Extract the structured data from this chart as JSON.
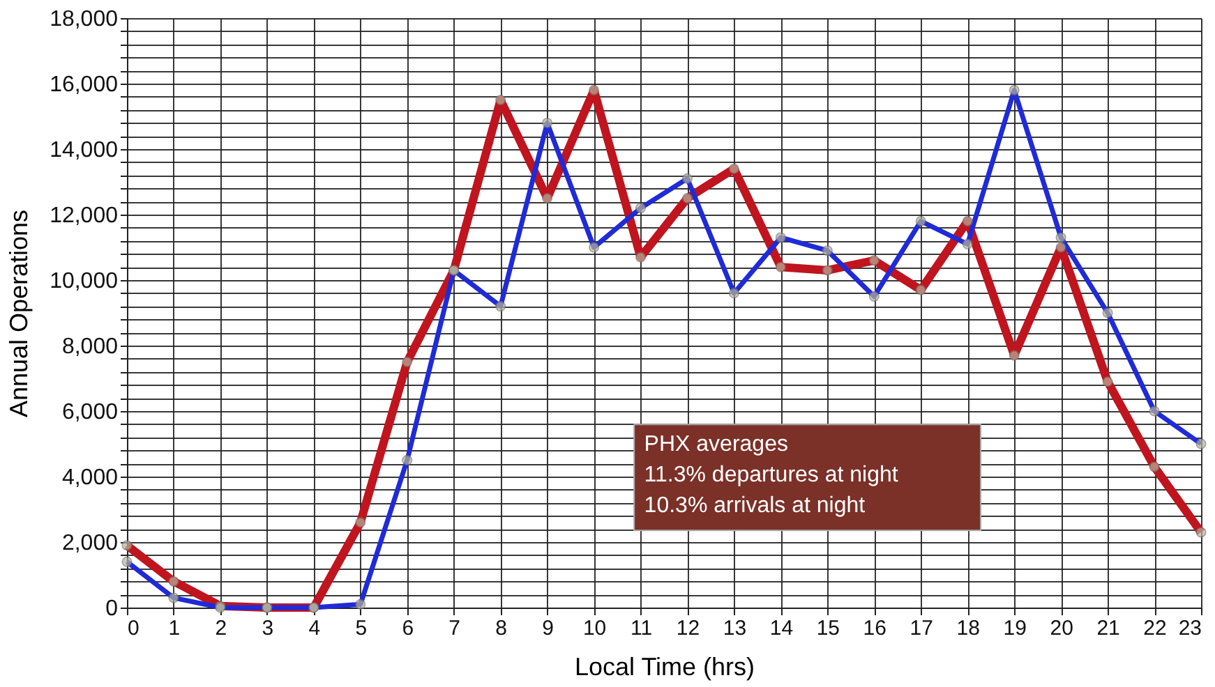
{
  "chart_data": {
    "type": "line",
    "xlabel": "Local Time (hrs)",
    "ylabel": "Annual Operations",
    "x": [
      0,
      1,
      2,
      3,
      4,
      5,
      6,
      7,
      8,
      9,
      10,
      11,
      12,
      13,
      14,
      15,
      16,
      17,
      18,
      19,
      20,
      21,
      22,
      23
    ],
    "xlim": [
      0,
      23
    ],
    "xticks": [
      0,
      1,
      2,
      3,
      4,
      5,
      6,
      7,
      8,
      9,
      10,
      11,
      12,
      13,
      14,
      15,
      16,
      17,
      18,
      19,
      20,
      21,
      22,
      23
    ],
    "ylim": [
      0,
      18000
    ],
    "yticks": [
      0,
      {
        "value": 400,
        "label": null
      },
      {
        "value": 800,
        "label": null
      },
      {
        "value": 1200,
        "label": null
      },
      {
        "value": 1600,
        "label": null
      },
      {
        "value": 2000,
        "label": "2,000"
      },
      {
        "value": 2400,
        "label": null
      },
      {
        "value": 2800,
        "label": null
      },
      {
        "value": 3200,
        "label": null
      },
      {
        "value": 3600,
        "label": null
      },
      {
        "value": 4000,
        "label": "4,000"
      },
      {
        "value": 4400,
        "label": null
      },
      {
        "value": 4800,
        "label": null
      },
      {
        "value": 5200,
        "label": null
      },
      {
        "value": 5600,
        "label": null
      },
      {
        "value": 6000,
        "label": "6,000"
      },
      {
        "value": 6400,
        "label": null
      },
      {
        "value": 6800,
        "label": null
      },
      {
        "value": 7200,
        "label": null
      },
      {
        "value": 7600,
        "label": null
      },
      {
        "value": 8000,
        "label": "8,000"
      },
      {
        "value": 8400,
        "label": null
      },
      {
        "value": 8800,
        "label": null
      },
      {
        "value": 9200,
        "label": null
      },
      {
        "value": 9600,
        "label": null
      },
      {
        "value": 10000,
        "label": "10,000"
      },
      {
        "value": 10400,
        "label": null
      },
      {
        "value": 10800,
        "label": null
      },
      {
        "value": 11200,
        "label": null
      },
      {
        "value": 11600,
        "label": null
      },
      {
        "value": 12000,
        "label": "12,000"
      },
      {
        "value": 12400,
        "label": null
      },
      {
        "value": 12800,
        "label": null
      },
      {
        "value": 13200,
        "label": null
      },
      {
        "value": 13600,
        "label": null
      },
      {
        "value": 14000,
        "label": "14,000"
      },
      {
        "value": 14400,
        "label": null
      },
      {
        "value": 14800,
        "label": null
      },
      {
        "value": 15200,
        "label": null
      },
      {
        "value": 15600,
        "label": null
      },
      {
        "value": 16000,
        "label": "16,000"
      },
      {
        "value": 16400,
        "label": null
      },
      {
        "value": 16800,
        "label": null
      },
      {
        "value": 17200,
        "label": null
      },
      {
        "value": 17600,
        "label": null
      },
      {
        "value": 18000,
        "label": "18,000"
      }
    ],
    "grid": true,
    "marker": "circle",
    "line_style": "solid",
    "legend": false,
    "series": [
      {
        "color": "#c0141e",
        "values": [
          1900,
          800,
          50,
          0,
          0,
          2600,
          7500,
          10300,
          15500,
          12500,
          15800,
          10700,
          12500,
          13400,
          10400,
          10300,
          10600,
          9700,
          11800,
          7700,
          11000,
          6900,
          4300,
          2300
        ]
      },
      {
        "color": "#1f2ad8",
        "values": [
          1400,
          300,
          0,
          0,
          0,
          100,
          4500,
          10300,
          9200,
          14800,
          11000,
          12200,
          13100,
          9600,
          11300,
          10900,
          9500,
          11800,
          11100,
          15800,
          11300,
          9000,
          6000,
          5000
        ]
      }
    ],
    "annotations": [
      "PHX averages",
      "11.3% departures at night",
      "10.3% arrivals at night"
    ]
  }
}
